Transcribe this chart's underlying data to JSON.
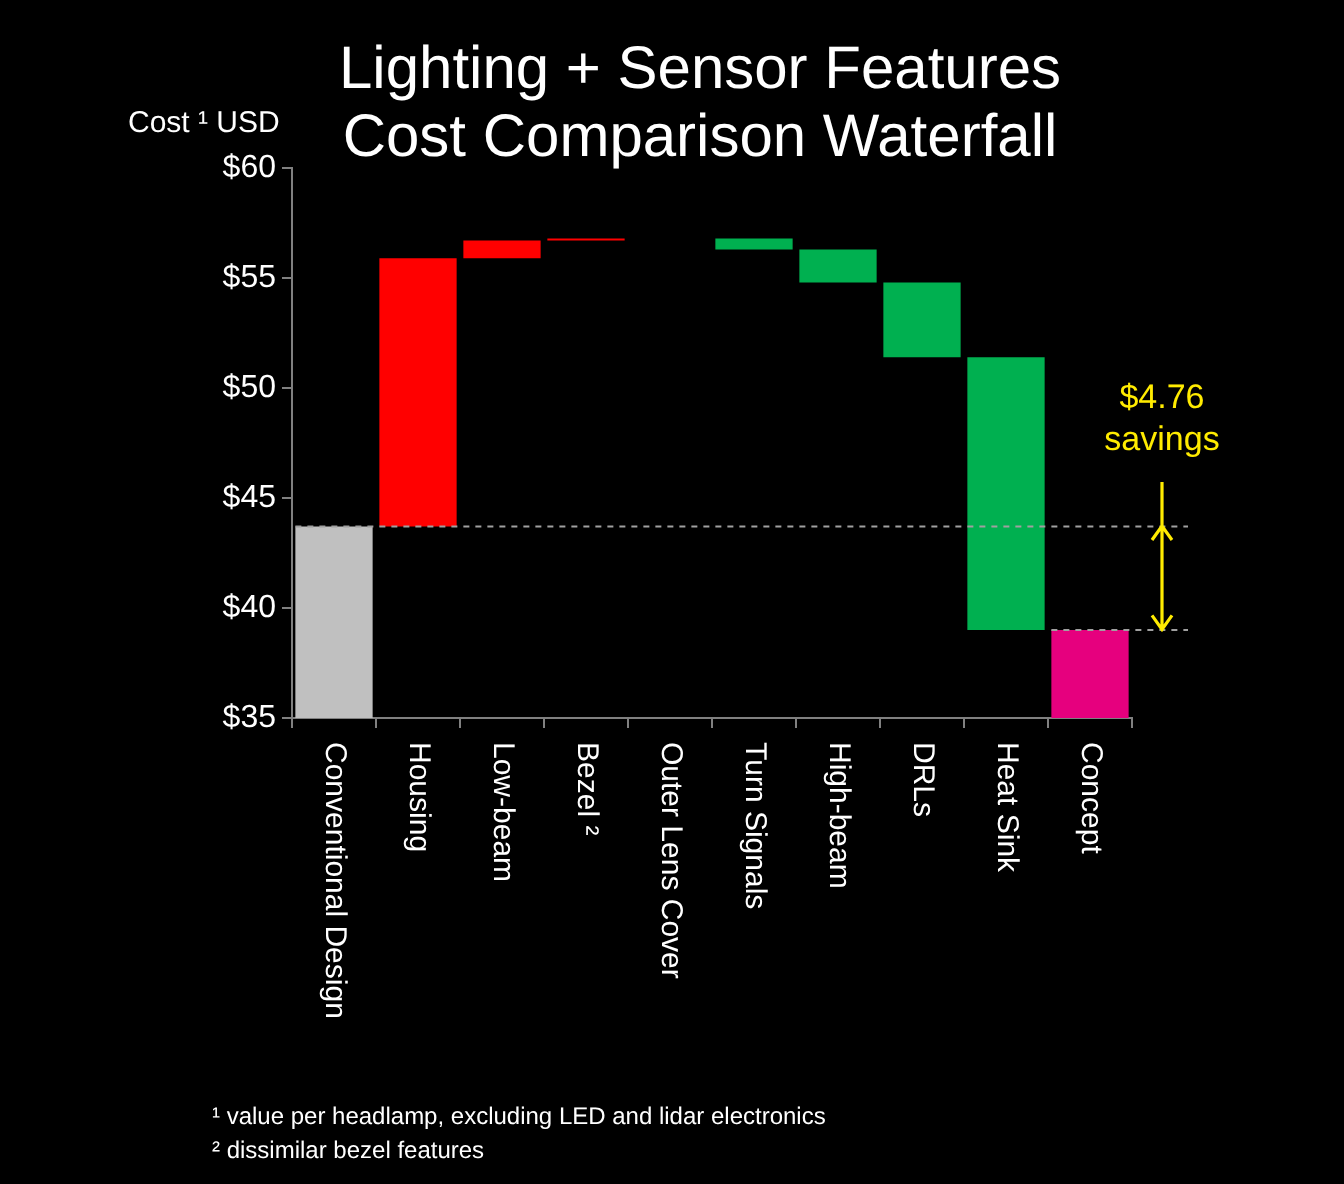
{
  "chart_data": {
    "type": "bar",
    "title": "Lighting + Sensor Features Cost Comparison Waterfall",
    "ylabel": "Cost ¹ USD",
    "categories": [
      "Conventional Design",
      "Housing",
      "Low-beam",
      "Bezel ²",
      "Outer Lens Cover",
      "Turn Signals",
      "High-beam",
      "DRLs",
      "Heat Sink",
      "Concept"
    ],
    "values": [
      43.7,
      12.2,
      0.8,
      0.1,
      null,
      -0.5,
      -1.5,
      -3.4,
      -12.4,
      39.0
    ],
    "base": [
      null,
      43.7,
      55.9,
      56.7,
      null,
      56.8,
      56.3,
      54.8,
      51.4,
      null
    ],
    "colors": [
      "#c0c0c0",
      "#ff0000",
      "#ff0000",
      "#ff0000",
      "#ff0000",
      "#00b050",
      "#00b050",
      "#00b050",
      "#00b050",
      "#e6007e"
    ],
    "ylim": [
      35,
      60
    ],
    "yticks": [
      {
        "value": 35,
        "label": "$35"
      },
      {
        "value": 40,
        "label": "$40"
      },
      {
        "value": 45,
        "label": "$45"
      },
      {
        "value": 50,
        "label": "$50"
      },
      {
        "value": 55,
        "label": "$55"
      },
      {
        "value": 60,
        "label": "$60"
      }
    ],
    "ref_lines": [
      {
        "axis": "y",
        "value": 43.7,
        "color": "#a0a0a0",
        "line_style": "dashed"
      },
      {
        "axis": "y",
        "value": 39.0,
        "color": "#a0a0a0",
        "line_style": "dashed"
      }
    ],
    "annotations": [
      "$4.76 savings",
      "¹ value per headlamp, excluding LED and lidar electronics",
      "² dissimilar bezel features"
    ],
    "grid": false,
    "legend": false
  }
}
